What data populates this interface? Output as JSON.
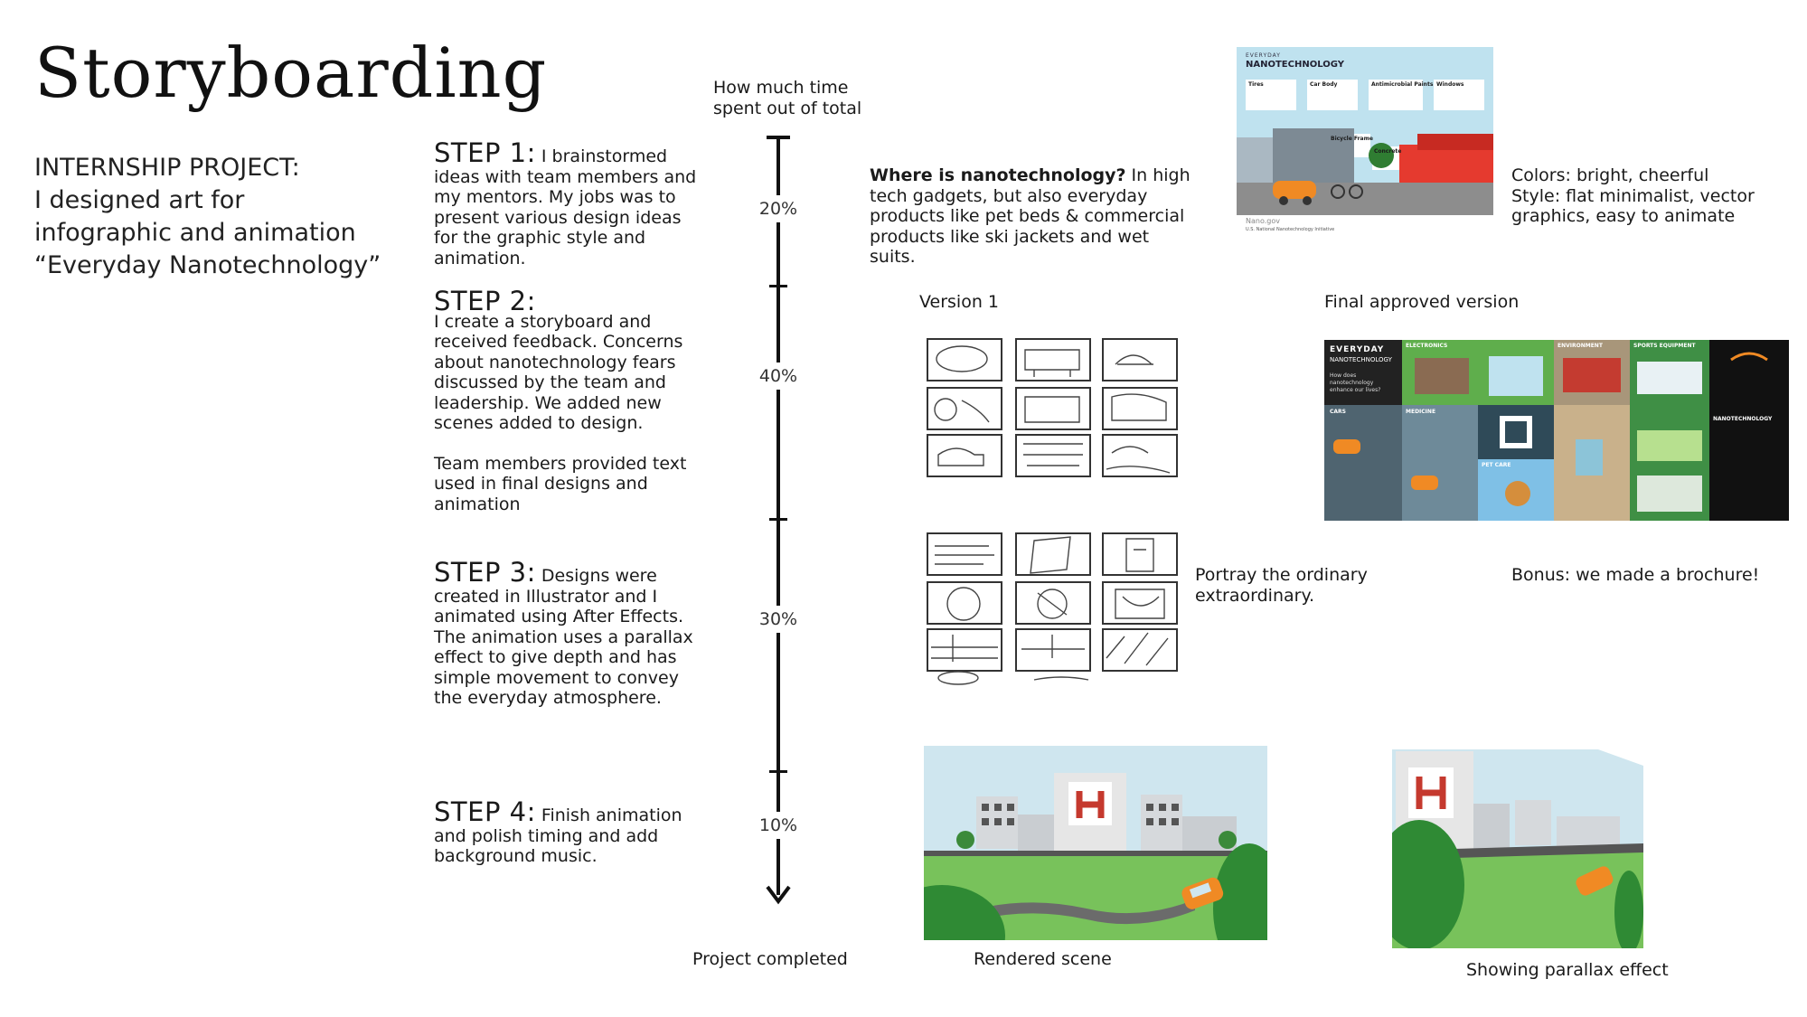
{
  "title": "Storyboarding",
  "project": {
    "line1": "INTERNSHIP PROJECT:",
    "line2": "I designed art for",
    "line3": "infographic and animation",
    "line4": "“Everyday Nanotechnology”"
  },
  "timeline": {
    "header_line1": "How much time",
    "header_line2": "spent out of total",
    "footer": "Project completed",
    "percentages": [
      "20%",
      "40%",
      "30%",
      "10%"
    ]
  },
  "steps": [
    {
      "head": "STEP 1:",
      "text": " I brainstormed ideas with team members and my mentors. My jobs was to present various design ideas for the graphic style and animation."
    },
    {
      "head": "STEP 2:",
      "text": "I create a storyboard and received feedback. Concerns about nanotechnology fears discussed by the team and leadership. We added new scenes added to design.",
      "text2": "Team members provided text used in final designs and animation"
    },
    {
      "head": "STEP 3:",
      "text": " Designs were created in Illustrator and I animated using After Effects. The animation uses a parallax effect to give depth and has simple movement to convey the everyday atmosphere."
    },
    {
      "head": "STEP 4:",
      "text": " Finish animation and polish timing and add background music."
    }
  ],
  "nano": {
    "question": "Where is nanotechnology?",
    "answer": " In high tech gadgets, but also everyday products like pet beds & commercial products like ski jackets and wet suits."
  },
  "style_note": {
    "line1": "Colors: bright, cheerful",
    "line2": "Style: flat minimalist, vector",
    "line3": "graphics, easy to animate"
  },
  "poster": {
    "kicker": "EVERYDAY",
    "title": "NANOTECHNOLOGY",
    "labels": [
      "Tires",
      "Car Body",
      "Antimicrobial Paints",
      "Windows",
      "Bicycle Frame",
      "Concrete"
    ],
    "footer": "Nano.gov",
    "footer_sub": "U.S. National Nanotechnology Initiative"
  },
  "captions": {
    "version1": "Version 1",
    "final": "Final approved version",
    "portray_line1": "Portray the ordinary",
    "portray_line2": "extraordinary.",
    "bonus": "Bonus: we made a brochure!",
    "rendered": "Rendered scene",
    "parallax": "Showing parallax effect"
  },
  "brochure": {
    "cover_kicker": "EVERYDAY",
    "cover_title": "NANOTECHNOLOGY",
    "cover_question": "How does nanotechnology enhance our lives?",
    "panels": [
      "ELECTRONICS",
      "ENVIRONMENT",
      "SPORTS EQUIPMENT",
      "CARS",
      "MEDICINE",
      "PET CARE",
      "NANOTECHNOLOGY"
    ]
  },
  "colors": {
    "accent_orange": "#f08a24",
    "sky": "#bcdbe8",
    "grass": "#78c25b",
    "red": "#e53a2f"
  }
}
